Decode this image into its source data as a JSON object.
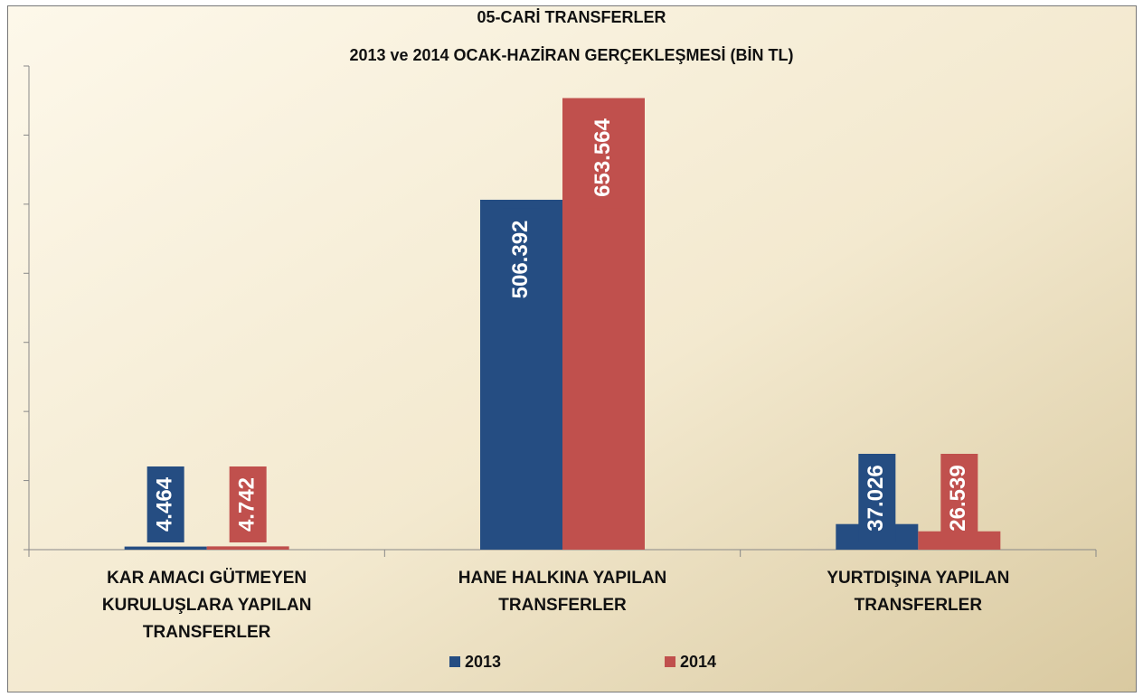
{
  "chart_data": {
    "type": "bar",
    "title": "05-CARİ TRANSFERLER",
    "subtitle": "2013 ve 2014 OCAK-HAZİRAN GERÇEKLEŞMESİ (BİN TL)",
    "categories": [
      "KAR AMACI GÜTMEYEN KURULUŞLARA YAPILAN TRANSFERLER",
      "HANE HALKINA YAPILAN TRANSFERLER",
      "YURTDIŞINA YAPILAN TRANSFERLER"
    ],
    "series": [
      {
        "name": "2013",
        "color": "#254d82",
        "values": [
          4464,
          506392,
          37026
        ],
        "value_labels": [
          "4.464",
          "506.392",
          "37.026"
        ]
      },
      {
        "name": "2014",
        "color": "#c0504d",
        "values": [
          4742,
          653564,
          26539
        ],
        "value_labels": [
          "4.742",
          "653.564",
          "26.539"
        ]
      }
    ],
    "ylim": [
      0,
      700000
    ],
    "yticks": [
      0,
      100000,
      200000,
      300000,
      400000,
      500000,
      600000,
      700000
    ],
    "legend": "bottom"
  }
}
